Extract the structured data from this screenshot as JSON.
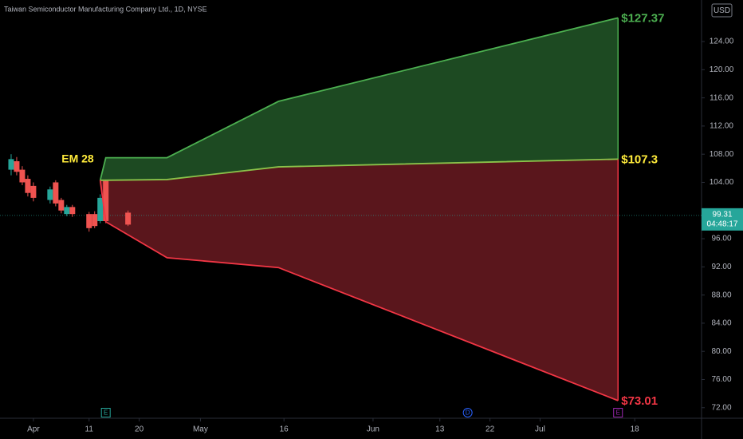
{
  "header": {
    "title": "Taiwan Semiconductor Manufacturing Company Ltd., 1D, NYSE",
    "currency": "USD"
  },
  "chart_data": {
    "type": "candlestick",
    "xlim": [
      "03-26",
      "07-30"
    ],
    "xticks": [
      {
        "value": "04-01",
        "label": "Apr"
      },
      {
        "value": "04-11",
        "label": "11"
      },
      {
        "value": "04-20",
        "label": "20"
      },
      {
        "value": "05-01",
        "label": "May"
      },
      {
        "value": "05-16",
        "label": "16"
      },
      {
        "value": "06-01",
        "label": "Jun"
      },
      {
        "value": "06-13",
        "label": "13"
      },
      {
        "value": "06-22",
        "label": "22"
      },
      {
        "value": "07-01",
        "label": "Jul"
      },
      {
        "value": "07-18",
        "label": "18"
      }
    ],
    "ylim": [
      70.5,
      129.9
    ],
    "yticks": [
      {
        "value": 72,
        "label": "72.00"
      },
      {
        "value": 76,
        "label": "76.00"
      },
      {
        "value": 80,
        "label": "80.00"
      },
      {
        "value": 84,
        "label": "84.00"
      },
      {
        "value": 88,
        "label": "88.00"
      },
      {
        "value": 92,
        "label": "92.00"
      },
      {
        "value": 96,
        "label": "96.00"
      },
      {
        "value": 104,
        "label": "104.00"
      },
      {
        "value": 108,
        "label": "108.00"
      },
      {
        "value": 112,
        "label": "112.00"
      },
      {
        "value": 116,
        "label": "116.00"
      },
      {
        "value": 120,
        "label": "120.00"
      },
      {
        "value": 124,
        "label": "124.00"
      }
    ],
    "grid": false,
    "candles": {
      "up_color": "#26a69a",
      "down_color": "#ef5350",
      "x": [
        "03-28",
        "03-29",
        "03-30",
        "03-31",
        "04-01",
        "04-04",
        "04-05",
        "04-06",
        "04-07",
        "04-08",
        "04-11",
        "04-12",
        "04-13",
        "04-14",
        "04-18"
      ],
      "open": [
        105.8,
        107.0,
        105.8,
        104.5,
        103.5,
        101.5,
        104.0,
        101.5,
        99.5,
        100.5,
        99.5,
        99.5,
        98.5,
        104.2,
        99.7
      ],
      "high": [
        108.0,
        107.6,
        106.3,
        105.0,
        104.0,
        103.4,
        104.3,
        101.8,
        100.8,
        100.8,
        99.8,
        99.9,
        102.3,
        104.4,
        100.0
      ],
      "low": [
        105.0,
        105.0,
        103.6,
        102.0,
        101.3,
        101.0,
        100.6,
        99.6,
        99.2,
        99.1,
        97.0,
        97.5,
        98.2,
        98.2,
        97.8
      ],
      "close": [
        107.3,
        105.5,
        104.0,
        102.5,
        101.8,
        103.0,
        101.0,
        100.0,
        100.5,
        99.5,
        97.5,
        97.8,
        101.8,
        98.5,
        98.0
      ]
    },
    "series": [
      {
        "name": "Upper",
        "color": "#4caf50",
        "fill": "#1d4a22",
        "label_color": "#4caf50",
        "end_label": "$127.37",
        "x": [
          "04-13",
          "04-14",
          "04-25",
          "05-15",
          "07-15"
        ],
        "values": [
          104.3,
          107.5,
          107.5,
          115.5,
          127.37
        ]
      },
      {
        "name": "Mid",
        "color": "#8bc34a",
        "fill": "#5a161c",
        "label_color": "#ffeb3b",
        "end_label": "$107.3",
        "x": [
          "04-13",
          "04-14",
          "04-25",
          "05-15",
          "07-15"
        ],
        "values": [
          104.3,
          104.3,
          104.4,
          106.2,
          107.3
        ]
      },
      {
        "name": "Lower",
        "color": "#f23645",
        "label_color": "#f23645",
        "end_label": "$73.01",
        "x": [
          "04-13",
          "04-14",
          "04-25",
          "05-15",
          "07-15"
        ],
        "values": [
          104.3,
          98.4,
          93.3,
          91.9,
          73.01
        ]
      }
    ],
    "annotation": {
      "text": "EM 28",
      "color": "#ffeb3b"
    },
    "last_price": {
      "value": 99.31,
      "label": "99.31",
      "countdown": "04:48:17",
      "color": "#26a69a"
    },
    "events": [
      {
        "x": "04-14",
        "label": "E",
        "color": "#26a69a"
      },
      {
        "x": "06-18",
        "label": "D",
        "color": "#2962ff"
      },
      {
        "x": "07-15",
        "label": "E",
        "color": "#9c27b0"
      }
    ]
  }
}
